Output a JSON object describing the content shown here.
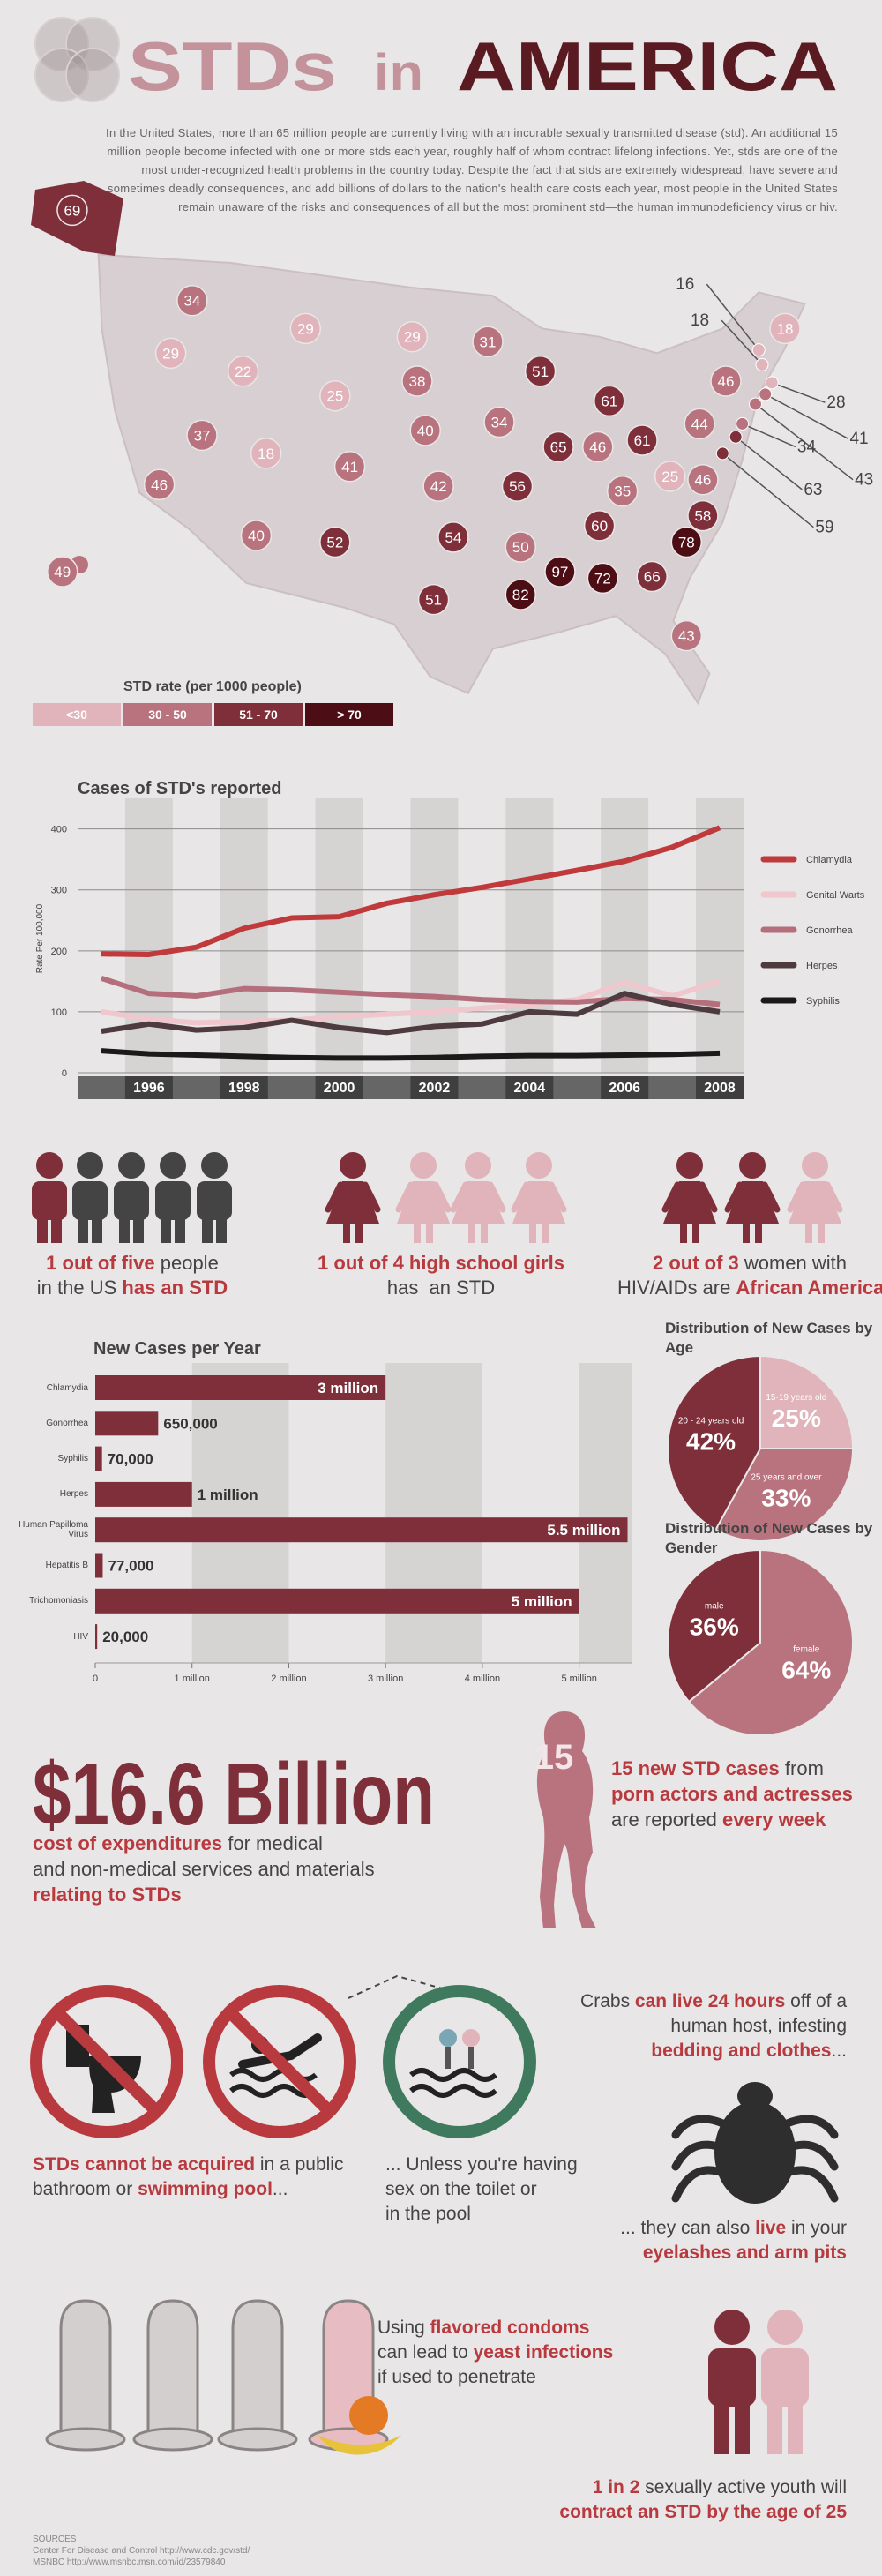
{
  "header": {
    "title": [
      "STDs",
      "in",
      "AMERICA"
    ],
    "intro": "In the United States, more than 65 million people are currently living with an incurable sexually transmitted disease (std). An additional 15 million people become infected with one or more stds each year, roughly half of whom contract lifelong infections. Yet, stds are one of the most under-recognized health problems in the country today. Despite the fact that stds are extremely widespread, have severe and sometimes deadly consequences, and add billions of dollars to the nation's health care costs each year, most people in the United States remain unaware of the risks and consequences of all but the most prominent std—the human immunodeficiency virus or hiv."
  },
  "map": {
    "values": [
      69,
      34,
      29,
      22,
      29,
      29,
      31,
      25,
      38,
      37,
      46,
      18,
      41,
      40,
      42,
      34,
      51,
      61,
      65,
      46,
      61,
      56,
      40,
      52,
      54,
      51,
      50,
      35,
      60,
      82,
      97,
      72,
      66,
      43,
      78,
      58,
      25,
      46,
      44,
      46,
      49,
      18,
      16,
      18,
      28,
      41,
      43,
      34,
      63,
      59
    ],
    "colors": [
      "#7e2f3a",
      "#b9737e",
      "#e1b4bb",
      "#e1b4bb",
      "#e1b4bb",
      "#e1b4bb",
      "#b9737e",
      "#e1b4bb",
      "#b9737e",
      "#b9737e",
      "#b9737e",
      "#e1b4bb",
      "#b9737e",
      "#b9737e",
      "#b9737e",
      "#b9737e",
      "#7e2f3a",
      "#7e2f3a",
      "#7e2f3a",
      "#b9737e",
      "#7e2f3a",
      "#7e2f3a",
      "#b9737e",
      "#7e2f3a",
      "#7e2f3a",
      "#7e2f3a",
      "#b9737e",
      "#b9737e",
      "#7e2f3a",
      "#4d0d14",
      "#4d0d14",
      "#4d0d14",
      "#7e2f3a",
      "#b9737e",
      "#4d0d14",
      "#7e2f3a",
      "#e1b4bb",
      "#b9737e",
      "#b9737e",
      "#b9737e",
      "#b9737e",
      "#e1b4bb",
      "#e1b4bb",
      "#e1b4bb",
      "#e1b4bb",
      "#b9737e",
      "#b9737e",
      "#b9737e",
      "#7e2f3a",
      "#7e2f3a"
    ],
    "legend_title": "STD rate (per 1000 people)",
    "legend": [
      {
        "label": "<30",
        "color": "#e1b4bb"
      },
      {
        "label": "30 - 50",
        "color": "#b9737e"
      },
      {
        "label": "51 - 70",
        "color": "#7e2f3a"
      },
      {
        "label": "> 70",
        "color": "#4d0d14"
      }
    ]
  },
  "chart_data": [
    {
      "type": "line",
      "title": "Cases of STD's reported",
      "y_label": "Rate Per 100,000",
      "x": [
        1995,
        1996,
        1997,
        1998,
        1999,
        2000,
        2001,
        2002,
        2003,
        2004,
        2005,
        2006,
        2007,
        2008
      ],
      "xlim": [
        1994.5,
        2008.5
      ],
      "xticks": [
        1996,
        1998,
        2000,
        2002,
        2004,
        2006,
        2008
      ],
      "ylim": [
        0,
        440
      ],
      "yticks": [
        0,
        100,
        200,
        300,
        400
      ],
      "grid": true,
      "series": [
        {
          "name": "Chlamydia",
          "color": "#c0393b",
          "values": [
            195,
            194,
            206,
            237,
            254,
            256,
            278,
            292,
            304,
            318,
            332,
            347,
            370,
            402
          ]
        },
        {
          "name": "Genital Warts",
          "color": "#f0c7cc",
          "values": [
            100,
            88,
            82,
            84,
            86,
            92,
            96,
            100,
            106,
            112,
            120,
            148,
            126,
            150
          ]
        },
        {
          "name": "Gonorrhea",
          "color": "#b56f7c",
          "values": [
            155,
            130,
            126,
            138,
            136,
            132,
            128,
            125,
            120,
            117,
            116,
            122,
            120,
            112
          ]
        },
        {
          "name": "Herpes",
          "color": "#4e3b3f",
          "values": [
            68,
            80,
            70,
            74,
            86,
            74,
            66,
            76,
            80,
            100,
            96,
            130,
            112,
            100
          ]
        },
        {
          "name": "Syphilis",
          "color": "#1a1a1a",
          "values": [
            36,
            31,
            29,
            27,
            25,
            24,
            24,
            25,
            27,
            28,
            28,
            29,
            30,
            32
          ]
        }
      ]
    },
    {
      "type": "hbar",
      "title": "New Cases per Year",
      "categories": [
        "Chlamydia",
        "Gonorrhea",
        "Syphilis",
        "Herpes",
        "Human Papilloma Virus",
        "Hepatitis B",
        "Trichomoniasis",
        "HIV"
      ],
      "values": [
        3000000,
        650000,
        70000,
        1000000,
        5500000,
        77000,
        5000000,
        20000
      ],
      "value_labels": [
        "3 million",
        "650,000",
        "70,000",
        "1 million",
        "5.5 million",
        "77,000",
        "5 million",
        "20,000"
      ],
      "color": "#7e2f3a",
      "xlim": [
        0,
        5550000
      ],
      "xticks": [
        0,
        {
          "value": 1000000,
          "label": "1 million"
        },
        {
          "value": 2000000,
          "label": "2 million"
        },
        {
          "value": 3000000,
          "label": "3 million"
        },
        {
          "value": 4000000,
          "label": "4 million"
        },
        {
          "value": 5000000,
          "label": "5 million"
        }
      ],
      "grid": true
    },
    {
      "type": "pie",
      "title": "Distribution of New Cases by Age",
      "categories": [
        "15-19 years old",
        "25 years and over",
        "20 - 24 years old"
      ],
      "values": [
        25,
        33,
        42
      ],
      "value_labels": [
        "25%",
        "33%",
        "42%"
      ],
      "colors": [
        "#e1b4bb",
        "#b9737e",
        "#7e2f3a"
      ]
    },
    {
      "type": "pie",
      "title": "Distribution of New Cases by Gender",
      "categories": [
        "female",
        "male"
      ],
      "values": [
        64,
        36
      ],
      "value_labels": [
        "64%",
        "36%"
      ],
      "colors": [
        "#b9737e",
        "#7e2f3a"
      ]
    }
  ],
  "stats": [
    {
      "lines": [
        [
          {
            "text": "1 out of five",
            "highlight": true
          },
          {
            "text": " people"
          }
        ],
        [
          {
            "text": "in the US "
          },
          {
            "text": "has an STD",
            "highlight": true
          }
        ]
      ]
    },
    {
      "lines": [
        [
          {
            "text": "1 out of 4 high school girls",
            "highlight": true
          }
        ],
        [
          {
            "text": "has  an STD"
          }
        ]
      ]
    },
    {
      "lines": [
        [
          {
            "text": "2 out of 3",
            "highlight": true
          },
          {
            "text": " women with"
          }
        ],
        [
          {
            "text": "HIV/AIDs are "
          },
          {
            "text": "African American",
            "highlight": true
          }
        ]
      ]
    }
  ],
  "cost": {
    "amount": "$16.6 Billion",
    "lines": [
      [
        {
          "text": "cost of expenditures",
          "highlight": true
        },
        {
          "text": " for medical"
        }
      ],
      [
        {
          "text": "and non-medical services and materials"
        }
      ],
      [
        {
          "text": "relating to STDs",
          "highlight": true
        }
      ]
    ]
  },
  "porn": {
    "number": "15",
    "lines": [
      [
        {
          "text": "15 new STD cases",
          "highlight": true
        },
        {
          "text": " from"
        }
      ],
      [
        {
          "text": "porn actors and actresses",
          "highlight": true
        }
      ],
      [
        {
          "text": "are reported "
        },
        {
          "text": "every week",
          "highlight": true
        }
      ]
    ]
  },
  "facts": [
    {
      "lines": [
        [
          {
            "text": "STDs cannot be acquired",
            "highlight": true
          },
          {
            "text": " in a public"
          }
        ],
        [
          {
            "text": "bathroom or "
          },
          {
            "text": "swimming pool",
            "highlight": true
          },
          {
            "text": "..."
          }
        ]
      ]
    },
    {
      "lines": [
        [
          {
            "text": "... Unless you're having"
          }
        ],
        [
          {
            "text": "sex on the toilet or"
          }
        ],
        [
          {
            "text": "in the pool"
          }
        ]
      ]
    },
    {
      "lines": [
        [
          {
            "text": "Crabs "
          },
          {
            "text": "can live 24 hours",
            "highlight": true
          },
          {
            "text": " off of a"
          }
        ],
        [
          {
            "text": "human host, infesting"
          }
        ],
        [
          {
            "text": "bedding and clothes",
            "highlight": true
          },
          {
            "text": "..."
          }
        ]
      ]
    },
    {
      "lines": [
        [
          {
            "text": "... they can also "
          },
          {
            "text": "live",
            "highlight": true
          },
          {
            "text": " in your"
          }
        ],
        [
          {
            "text": "eyelashes and arm pits",
            "highlight": true
          }
        ]
      ]
    },
    {
      "lines": [
        [
          {
            "text": "Using "
          },
          {
            "text": "flavored condoms",
            "highlight": true
          }
        ],
        [
          {
            "text": "can lead to "
          },
          {
            "text": "yeast infections",
            "highlight": true
          }
        ],
        [
          {
            "text": "if used to penetrate"
          }
        ]
      ]
    },
    {
      "lines": [
        [
          {
            "text": "1 in 2",
            "highlight": true
          },
          {
            "text": " sexually active youth will"
          }
        ],
        [
          {
            "text": "contract an STD by the age of 25",
            "highlight": true
          }
        ]
      ]
    }
  ],
  "sources": [
    "SOURCES",
    "Center For Disease and Control http://www.cdc.gov/std/",
    "MSNBC http://www.msnbc.msn.com/id/23579840"
  ]
}
